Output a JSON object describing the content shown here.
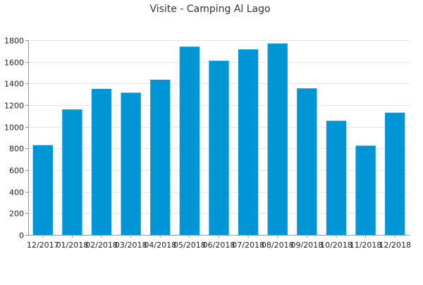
{
  "chart_data": {
    "type": "bar",
    "title": "Visite - Camping Al Lago",
    "xlabel": "",
    "ylabel": "",
    "categories": [
      "12/2017",
      "01/2018",
      "02/2018",
      "03/2018",
      "04/2018",
      "05/2018",
      "06/2018",
      "07/2018",
      "08/2018",
      "09/2018",
      "10/2018",
      "11/2018",
      "12/2018"
    ],
    "values": [
      830,
      1160,
      1350,
      1315,
      1435,
      1740,
      1610,
      1715,
      1770,
      1355,
      1055,
      825,
      1130
    ],
    "ylim": [
      0,
      1800
    ],
    "yticks": [
      0,
      200,
      400,
      600,
      800,
      1000,
      1200,
      1400,
      1600,
      1800
    ],
    "grid": true,
    "legend": "none",
    "colors": {
      "bar": "#0096d6",
      "grid": "#e6e6e6",
      "axis": "#999999",
      "title": "#333333"
    }
  }
}
